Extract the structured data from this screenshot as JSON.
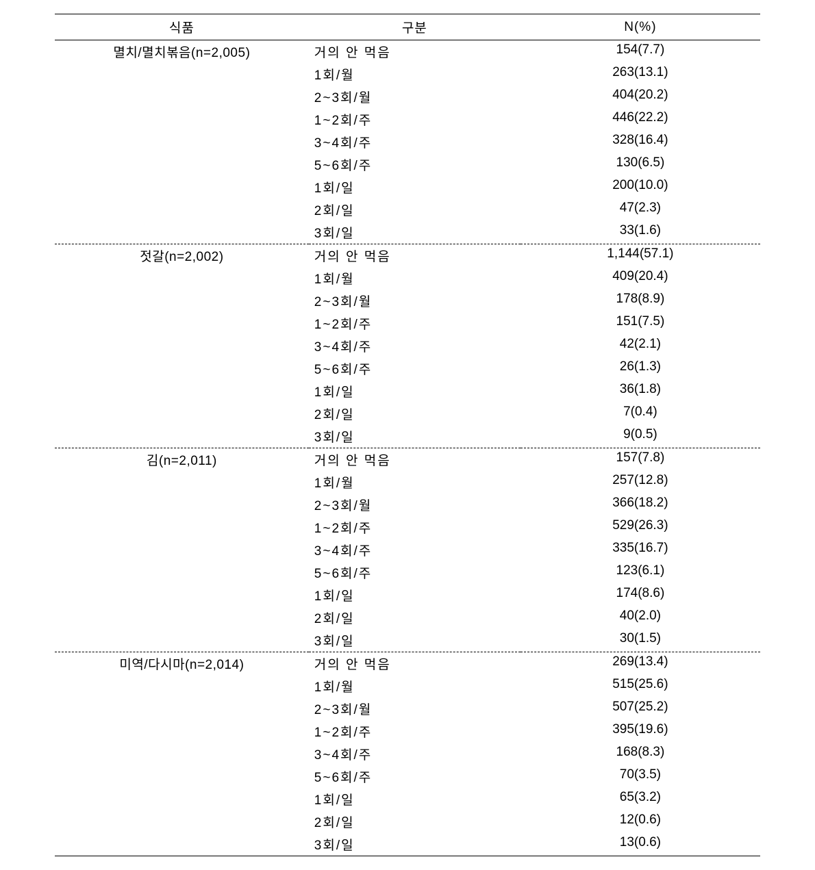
{
  "columns": {
    "food": "식품",
    "frequency": "구분",
    "npct": "N(%)"
  },
  "groups": [
    {
      "food": "멸치/멸치볶음(n=2,005)",
      "rows": [
        {
          "freq": "거의 안 먹음",
          "npct": "154(7.7)"
        },
        {
          "freq": "1회/월",
          "npct": "263(13.1)"
        },
        {
          "freq": "2~3회/월",
          "npct": "404(20.2)"
        },
        {
          "freq": "1~2회/주",
          "npct": "446(22.2)"
        },
        {
          "freq": "3~4회/주",
          "npct": "328(16.4)"
        },
        {
          "freq": "5~6회/주",
          "npct": "130(6.5)"
        },
        {
          "freq": "1회/일",
          "npct": "200(10.0)"
        },
        {
          "freq": "2회/일",
          "npct": "47(2.3)"
        },
        {
          "freq": "3회/일",
          "npct": "33(1.6)"
        }
      ]
    },
    {
      "food": "젓갈(n=2,002)",
      "rows": [
        {
          "freq": "거의 안 먹음",
          "npct": "1,144(57.1)"
        },
        {
          "freq": "1회/월",
          "npct": "409(20.4)"
        },
        {
          "freq": "2~3회/월",
          "npct": "178(8.9)"
        },
        {
          "freq": "1~2회/주",
          "npct": "151(7.5)"
        },
        {
          "freq": "3~4회/주",
          "npct": "42(2.1)"
        },
        {
          "freq": "5~6회/주",
          "npct": "26(1.3)"
        },
        {
          "freq": "1회/일",
          "npct": "36(1.8)"
        },
        {
          "freq": "2회/일",
          "npct": "7(0.4)"
        },
        {
          "freq": "3회/일",
          "npct": "9(0.5)"
        }
      ]
    },
    {
      "food": "김(n=2,011)",
      "rows": [
        {
          "freq": "거의 안 먹음",
          "npct": "157(7.8)"
        },
        {
          "freq": "1회/월",
          "npct": "257(12.8)"
        },
        {
          "freq": "2~3회/월",
          "npct": "366(18.2)"
        },
        {
          "freq": "1~2회/주",
          "npct": "529(26.3)"
        },
        {
          "freq": "3~4회/주",
          "npct": "335(16.7)"
        },
        {
          "freq": "5~6회/주",
          "npct": "123(6.1)"
        },
        {
          "freq": "1회/일",
          "npct": "174(8.6)"
        },
        {
          "freq": "2회/일",
          "npct": "40(2.0)"
        },
        {
          "freq": "3회/일",
          "npct": "30(1.5)"
        }
      ]
    },
    {
      "food": "미역/다시마(n=2,014)",
      "rows": [
        {
          "freq": "거의 안 먹음",
          "npct": "269(13.4)"
        },
        {
          "freq": "1회/월",
          "npct": "515(25.6)"
        },
        {
          "freq": "2~3회/월",
          "npct": "507(25.2)"
        },
        {
          "freq": "1~2회/주",
          "npct": "395(19.6)"
        },
        {
          "freq": "3~4회/주",
          "npct": "168(8.3)"
        },
        {
          "freq": "5~6회/주",
          "npct": "70(3.5)"
        },
        {
          "freq": "1회/일",
          "npct": "65(3.2)"
        },
        {
          "freq": "2회/일",
          "npct": "12(0.6)"
        },
        {
          "freq": "3회/일",
          "npct": "13(0.6)"
        }
      ]
    }
  ]
}
